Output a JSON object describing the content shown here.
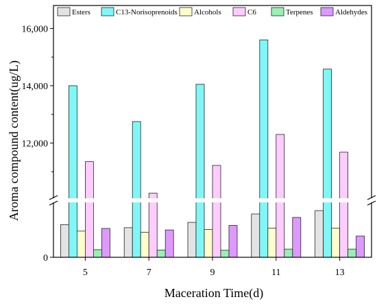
{
  "chart_data": {
    "type": "bar",
    "title": "",
    "xlabel": "Maceration Time(d)",
    "ylabel": "Aroma compound content(ug/L)",
    "categories": [
      "5",
      "7",
      "9",
      "11",
      "13"
    ],
    "y_break": true,
    "y_tick_labels": [
      "0",
      "12,000",
      "14,000",
      "16,000"
    ],
    "legend_position": "top",
    "grid": false,
    "series": [
      {
        "name": "Esters",
        "color": "#e3e3e3",
        "values": [
          860,
          780,
          920,
          1140,
          1230
        ]
      },
      {
        "name": "C13-Norisoprenoids",
        "color": "#7ff7f7",
        "values": [
          14000,
          12750,
          14050,
          15600,
          14580
        ]
      },
      {
        "name": "Alcohols",
        "color": "#ffffcc",
        "values": [
          690,
          660,
          730,
          770,
          770
        ]
      },
      {
        "name": "C6",
        "color": "#ffccff",
        "values": [
          11350,
          10250,
          11220,
          12300,
          11680
        ]
      },
      {
        "name": "Terpenes",
        "color": "#99f0b4",
        "values": [
          200,
          190,
          185,
          215,
          215
        ]
      },
      {
        "name": "Aldehydes",
        "color": "#dd99ff",
        "values": [
          760,
          720,
          840,
          1050,
          560
        ]
      }
    ]
  }
}
